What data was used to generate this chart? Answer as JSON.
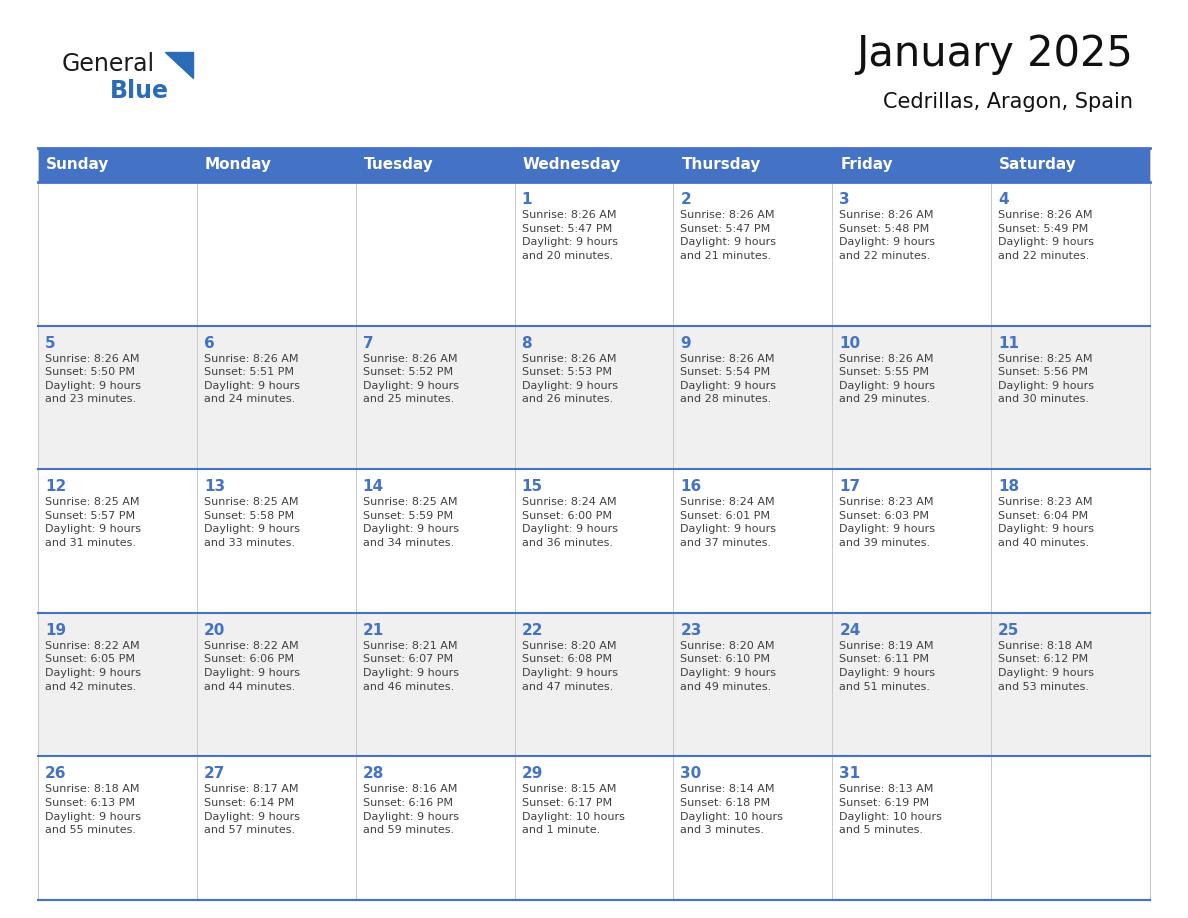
{
  "title": "January 2025",
  "subtitle": "Cedrillas, Aragon, Spain",
  "header_color": "#4472C4",
  "header_text_color": "#FFFFFF",
  "cell_bg_color": "#FFFFFF",
  "cell_alt_bg_color": "#F0F0F0",
  "day_number_color": "#4472C4",
  "text_color": "#404040",
  "border_color": "#4472C4",
  "separator_color": "#B0B8D0",
  "days_of_week": [
    "Sunday",
    "Monday",
    "Tuesday",
    "Wednesday",
    "Thursday",
    "Friday",
    "Saturday"
  ],
  "weeks": [
    [
      {
        "day": "",
        "info": ""
      },
      {
        "day": "",
        "info": ""
      },
      {
        "day": "",
        "info": ""
      },
      {
        "day": "1",
        "info": "Sunrise: 8:26 AM\nSunset: 5:47 PM\nDaylight: 9 hours\nand 20 minutes."
      },
      {
        "day": "2",
        "info": "Sunrise: 8:26 AM\nSunset: 5:47 PM\nDaylight: 9 hours\nand 21 minutes."
      },
      {
        "day": "3",
        "info": "Sunrise: 8:26 AM\nSunset: 5:48 PM\nDaylight: 9 hours\nand 22 minutes."
      },
      {
        "day": "4",
        "info": "Sunrise: 8:26 AM\nSunset: 5:49 PM\nDaylight: 9 hours\nand 22 minutes."
      }
    ],
    [
      {
        "day": "5",
        "info": "Sunrise: 8:26 AM\nSunset: 5:50 PM\nDaylight: 9 hours\nand 23 minutes."
      },
      {
        "day": "6",
        "info": "Sunrise: 8:26 AM\nSunset: 5:51 PM\nDaylight: 9 hours\nand 24 minutes."
      },
      {
        "day": "7",
        "info": "Sunrise: 8:26 AM\nSunset: 5:52 PM\nDaylight: 9 hours\nand 25 minutes."
      },
      {
        "day": "8",
        "info": "Sunrise: 8:26 AM\nSunset: 5:53 PM\nDaylight: 9 hours\nand 26 minutes."
      },
      {
        "day": "9",
        "info": "Sunrise: 8:26 AM\nSunset: 5:54 PM\nDaylight: 9 hours\nand 28 minutes."
      },
      {
        "day": "10",
        "info": "Sunrise: 8:26 AM\nSunset: 5:55 PM\nDaylight: 9 hours\nand 29 minutes."
      },
      {
        "day": "11",
        "info": "Sunrise: 8:25 AM\nSunset: 5:56 PM\nDaylight: 9 hours\nand 30 minutes."
      }
    ],
    [
      {
        "day": "12",
        "info": "Sunrise: 8:25 AM\nSunset: 5:57 PM\nDaylight: 9 hours\nand 31 minutes."
      },
      {
        "day": "13",
        "info": "Sunrise: 8:25 AM\nSunset: 5:58 PM\nDaylight: 9 hours\nand 33 minutes."
      },
      {
        "day": "14",
        "info": "Sunrise: 8:25 AM\nSunset: 5:59 PM\nDaylight: 9 hours\nand 34 minutes."
      },
      {
        "day": "15",
        "info": "Sunrise: 8:24 AM\nSunset: 6:00 PM\nDaylight: 9 hours\nand 36 minutes."
      },
      {
        "day": "16",
        "info": "Sunrise: 8:24 AM\nSunset: 6:01 PM\nDaylight: 9 hours\nand 37 minutes."
      },
      {
        "day": "17",
        "info": "Sunrise: 8:23 AM\nSunset: 6:03 PM\nDaylight: 9 hours\nand 39 minutes."
      },
      {
        "day": "18",
        "info": "Sunrise: 8:23 AM\nSunset: 6:04 PM\nDaylight: 9 hours\nand 40 minutes."
      }
    ],
    [
      {
        "day": "19",
        "info": "Sunrise: 8:22 AM\nSunset: 6:05 PM\nDaylight: 9 hours\nand 42 minutes."
      },
      {
        "day": "20",
        "info": "Sunrise: 8:22 AM\nSunset: 6:06 PM\nDaylight: 9 hours\nand 44 minutes."
      },
      {
        "day": "21",
        "info": "Sunrise: 8:21 AM\nSunset: 6:07 PM\nDaylight: 9 hours\nand 46 minutes."
      },
      {
        "day": "22",
        "info": "Sunrise: 8:20 AM\nSunset: 6:08 PM\nDaylight: 9 hours\nand 47 minutes."
      },
      {
        "day": "23",
        "info": "Sunrise: 8:20 AM\nSunset: 6:10 PM\nDaylight: 9 hours\nand 49 minutes."
      },
      {
        "day": "24",
        "info": "Sunrise: 8:19 AM\nSunset: 6:11 PM\nDaylight: 9 hours\nand 51 minutes."
      },
      {
        "day": "25",
        "info": "Sunrise: 8:18 AM\nSunset: 6:12 PM\nDaylight: 9 hours\nand 53 minutes."
      }
    ],
    [
      {
        "day": "26",
        "info": "Sunrise: 8:18 AM\nSunset: 6:13 PM\nDaylight: 9 hours\nand 55 minutes."
      },
      {
        "day": "27",
        "info": "Sunrise: 8:17 AM\nSunset: 6:14 PM\nDaylight: 9 hours\nand 57 minutes."
      },
      {
        "day": "28",
        "info": "Sunrise: 8:16 AM\nSunset: 6:16 PM\nDaylight: 9 hours\nand 59 minutes."
      },
      {
        "day": "29",
        "info": "Sunrise: 8:15 AM\nSunset: 6:17 PM\nDaylight: 10 hours\nand 1 minute."
      },
      {
        "day": "30",
        "info": "Sunrise: 8:14 AM\nSunset: 6:18 PM\nDaylight: 10 hours\nand 3 minutes."
      },
      {
        "day": "31",
        "info": "Sunrise: 8:13 AM\nSunset: 6:19 PM\nDaylight: 10 hours\nand 5 minutes."
      },
      {
        "day": "",
        "info": ""
      }
    ]
  ],
  "logo_general_color": "#1a1a1a",
  "logo_blue_color": "#2B6CB8",
  "title_fontsize": 30,
  "subtitle_fontsize": 15,
  "header_fontsize": 11,
  "day_num_fontsize": 11,
  "cell_text_fontsize": 8
}
